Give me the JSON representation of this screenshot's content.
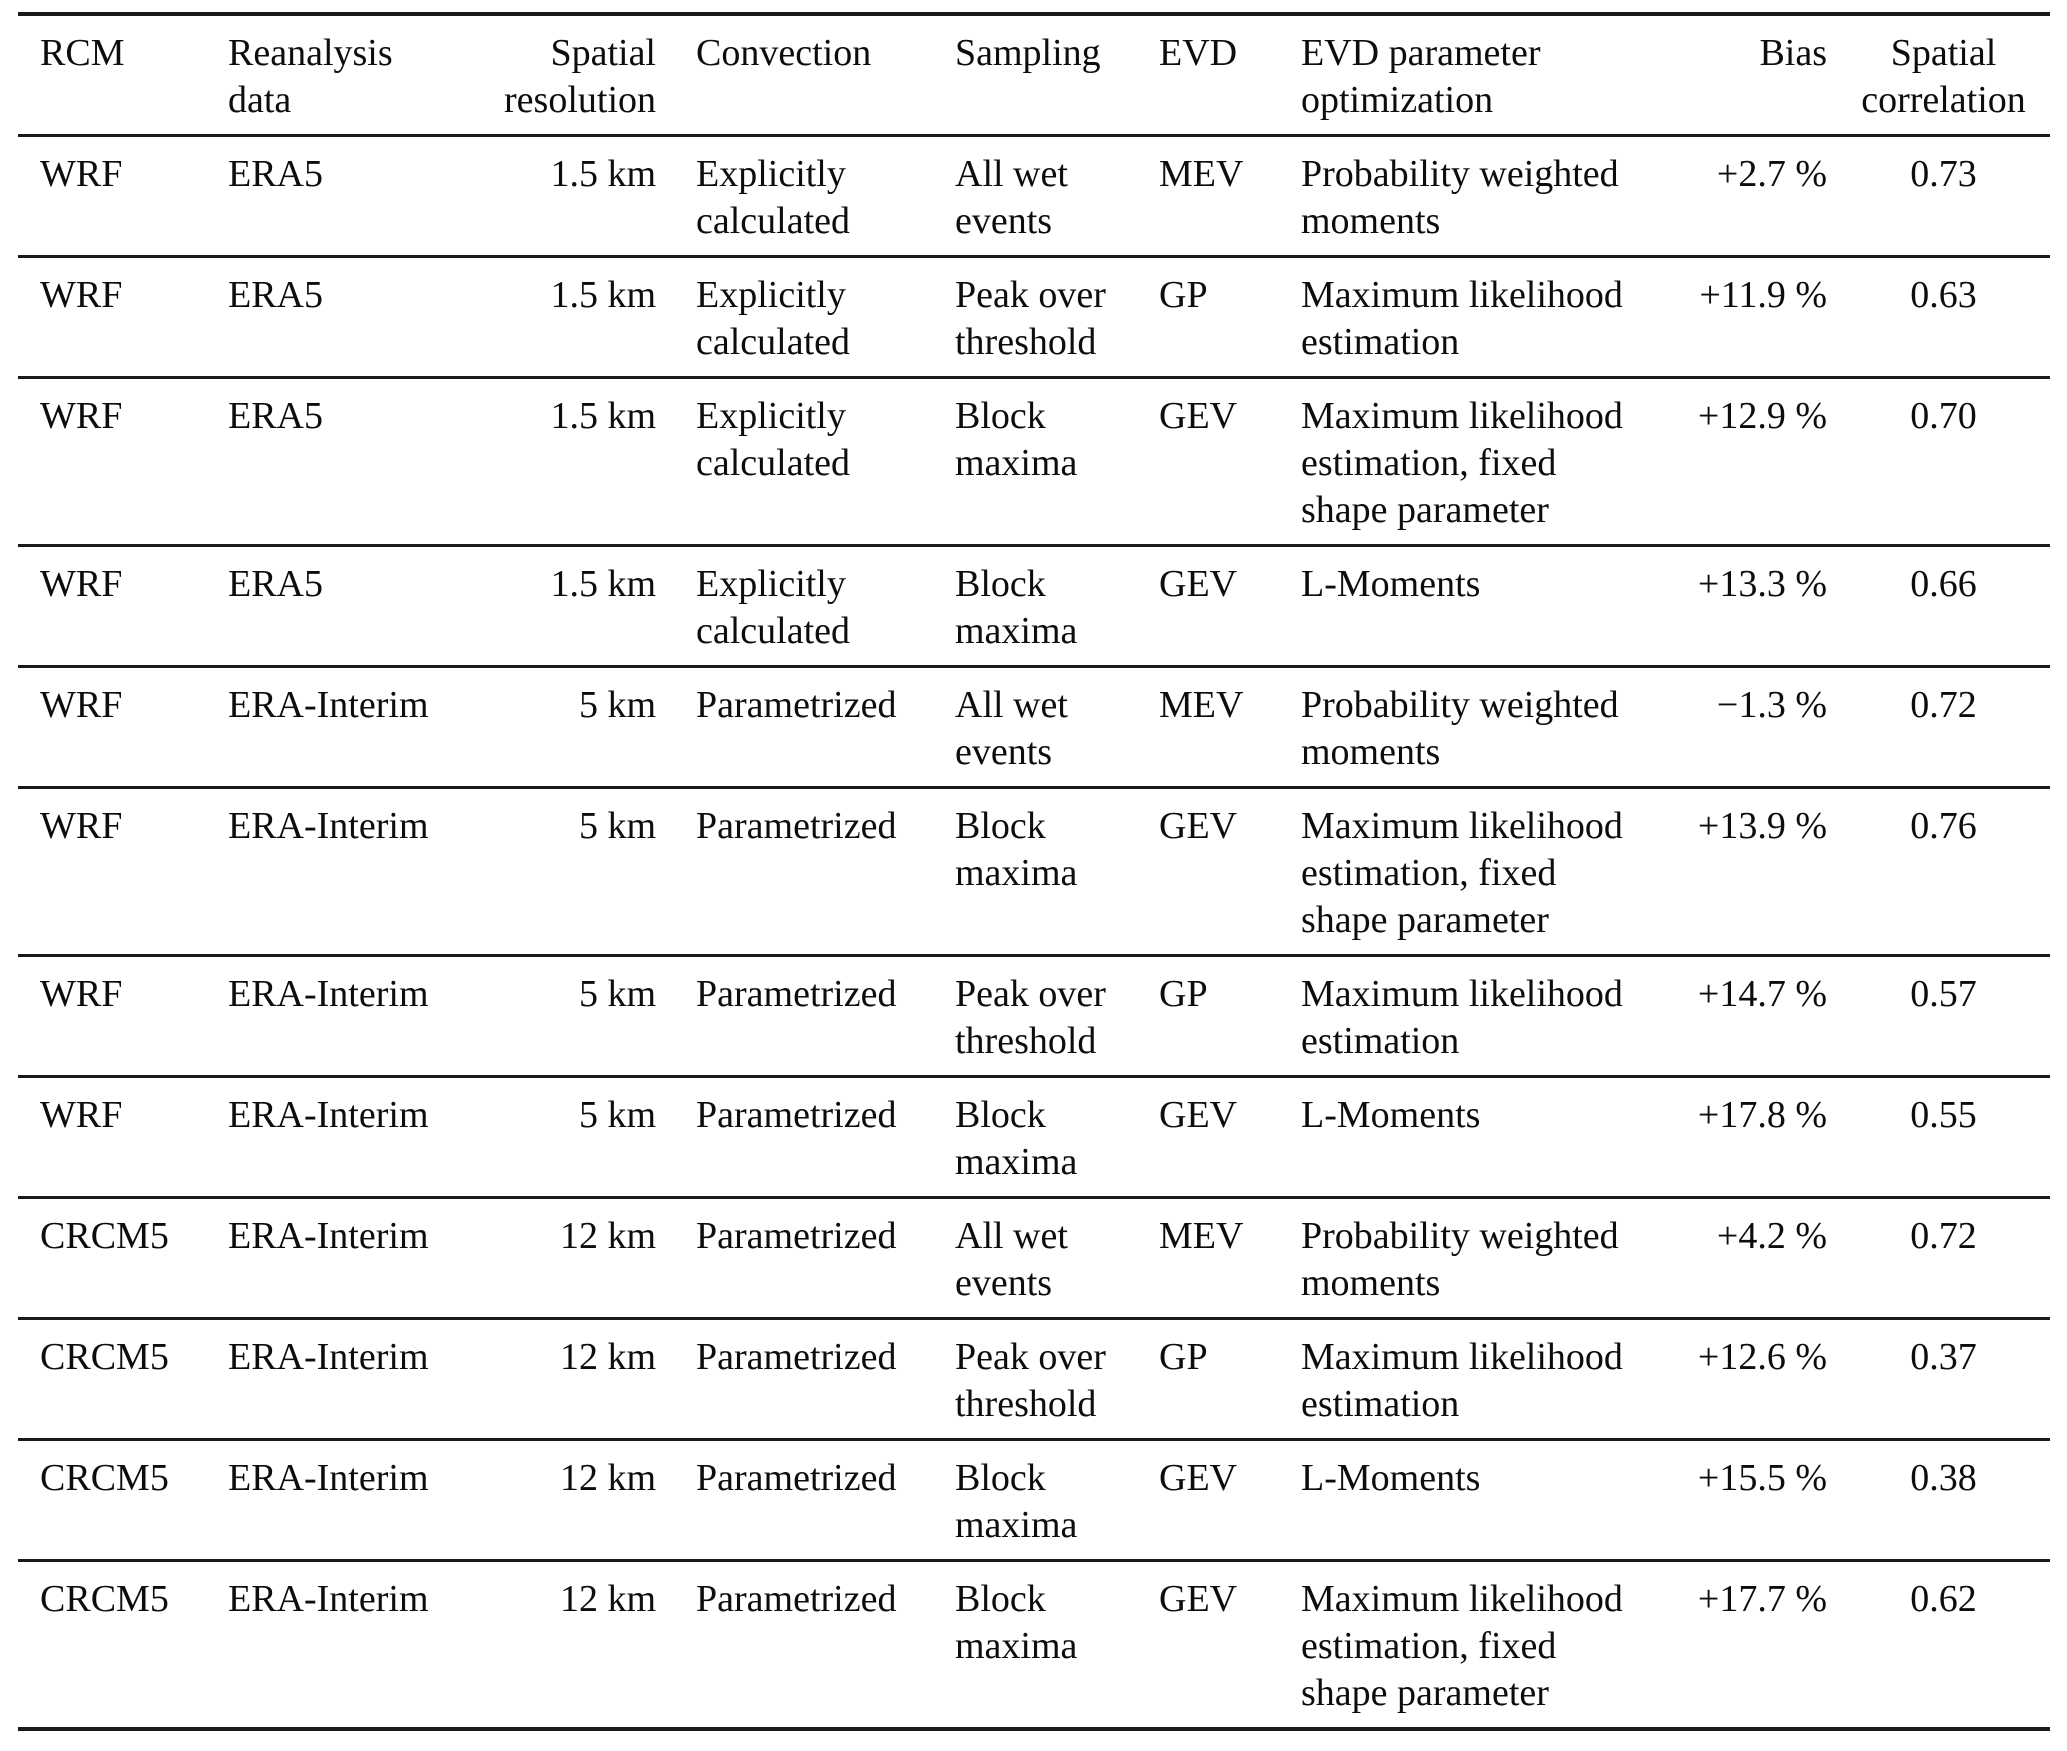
{
  "colors": {
    "text": "#0d0d0d",
    "rule": "#1a1a1a",
    "background": "#ffffff"
  },
  "table": {
    "columns": [
      {
        "label": "RCM",
        "align": "left"
      },
      {
        "label": "Reanalysis data",
        "align": "left"
      },
      {
        "label": "Spatial resolution",
        "align": "right"
      },
      {
        "label": "Convection",
        "align": "left"
      },
      {
        "label": "Sampling",
        "align": "left"
      },
      {
        "label": "EVD",
        "align": "left"
      },
      {
        "label": "EVD parameter optimization",
        "align": "left"
      },
      {
        "label": "Bias",
        "align": "right"
      },
      {
        "label": "Spatial correlation",
        "align": "center"
      }
    ],
    "rows": [
      {
        "cells": [
          "WRF",
          "ERA5",
          "1.5 km",
          "Explicitly calculated",
          "All wet events",
          "MEV",
          "Probability weighted moments",
          "+2.7 %",
          "0.73"
        ]
      },
      {
        "cells": [
          "WRF",
          "ERA5",
          "1.5 km",
          "Explicitly calculated",
          "Peak over threshold",
          "GP",
          "Maximum likelihood estimation",
          "+11.9 %",
          "0.63"
        ]
      },
      {
        "cells": [
          "WRF",
          "ERA5",
          "1.5 km",
          "Explicitly calculated",
          "Block maxima",
          "GEV",
          "Maximum likelihood estimation, fixed shape parameter",
          "+12.9 %",
          "0.70"
        ]
      },
      {
        "cells": [
          "WRF",
          "ERA5",
          "1.5 km",
          "Explicitly calculated",
          "Block maxima",
          "GEV",
          "L-Moments",
          "+13.3 %",
          "0.66"
        ]
      },
      {
        "cells": [
          "WRF",
          "ERA-Interim",
          "5 km",
          "Parametrized",
          "All wet events",
          "MEV",
          "Probability weighted moments",
          "−1.3 %",
          "0.72"
        ]
      },
      {
        "cells": [
          "WRF",
          "ERA-Interim",
          "5 km",
          "Parametrized",
          "Block maxima",
          "GEV",
          "Maximum likelihood estimation, fixed shape parameter",
          "+13.9 %",
          "0.76"
        ]
      },
      {
        "cells": [
          "WRF",
          "ERA-Interim",
          "5 km",
          "Parametrized",
          "Peak over threshold",
          "GP",
          "Maximum likelihood estimation",
          "+14.7 %",
          "0.57"
        ]
      },
      {
        "cells": [
          "WRF",
          "ERA-Interim",
          "5 km",
          "Parametrized",
          "Block maxima",
          "GEV",
          "L-Moments",
          "+17.8 %",
          "0.55"
        ]
      },
      {
        "cells": [
          "CRCM5",
          "ERA-Interim",
          "12 km",
          "Parametrized",
          "All wet events",
          "MEV",
          "Probability weighted moments",
          "+4.2 %",
          "0.72"
        ]
      },
      {
        "cells": [
          "CRCM5",
          "ERA-Interim",
          "12 km",
          "Parametrized",
          "Peak over threshold",
          "GP",
          "Maximum likelihood estimation",
          "+12.6 %",
          "0.37"
        ]
      },
      {
        "cells": [
          "CRCM5",
          "ERA-Interim",
          "12 km",
          "Parametrized",
          "Block maxima",
          "GEV",
          "L-Moments",
          "+15.5 %",
          "0.38"
        ]
      },
      {
        "cells": [
          "CRCM5",
          "ERA-Interim",
          "12 km",
          "Parametrized",
          "Block maxima",
          "GEV",
          "Maximum likelihood estimation, fixed shape parameter",
          "+17.7 %",
          "0.62"
        ]
      }
    ]
  }
}
